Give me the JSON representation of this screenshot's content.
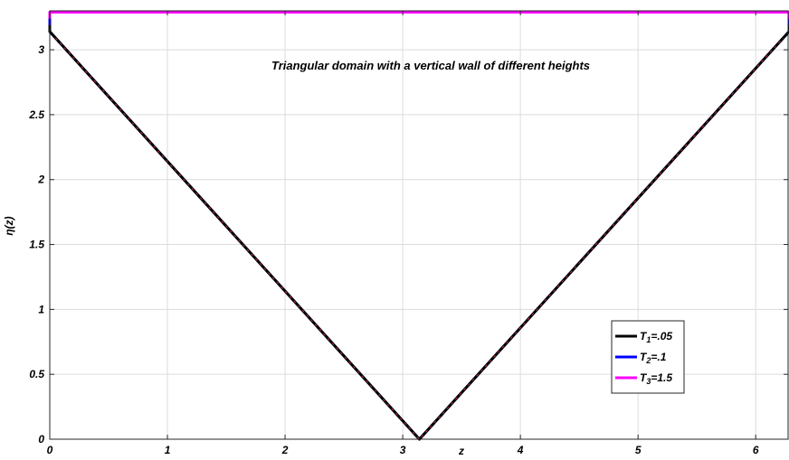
{
  "chart_data": {
    "type": "line",
    "title": "",
    "annotation": "Triangular domain with a vertical wall of different heights",
    "xlabel": "z",
    "ylabel": "η(z)",
    "xlim": [
      0,
      6.283
    ],
    "ylim": [
      0,
      3.3
    ],
    "xticks": [
      0,
      1,
      2,
      3,
      4,
      5,
      6
    ],
    "xtick_labels": [
      "0",
      "1",
      "2",
      "3",
      "4",
      "5",
      "6"
    ],
    "yticks": [
      0,
      0.5,
      1,
      1.5,
      2,
      2.5,
      3
    ],
    "ytick_labels": [
      "0",
      "0.5",
      "1",
      "1.5",
      "2",
      "2.5",
      "3"
    ],
    "grid": true,
    "legend_position": "lower-right",
    "series": [
      {
        "legend_main": "T",
        "legend_sub": "1",
        "legend_tail": "=.05",
        "color": "#000000",
        "x": [
          0,
          0,
          0.05,
          3.1416,
          6.2332,
          6.283,
          6.283
        ],
        "y": [
          3.19,
          3.14,
          3.09,
          0,
          3.09,
          3.14,
          3.19
        ],
        "wall_height": 3.19
      },
      {
        "legend_main": "T",
        "legend_sub": "2",
        "legend_tail": "=.1",
        "color": "#0000ff",
        "x": [
          0,
          0,
          0.05,
          3.1416,
          6.2332,
          6.283,
          6.283
        ],
        "y": [
          3.24,
          3.14,
          3.09,
          0,
          3.09,
          3.14,
          3.24
        ],
        "wall_height": 3.24
      },
      {
        "legend_main": "T",
        "legend_sub": "3",
        "legend_tail": "=1.5",
        "color": "#ff00ff",
        "x": [
          0,
          0,
          6.283,
          6.283
        ],
        "y": [
          3.14,
          3.29,
          3.29,
          3.14
        ],
        "wall_height": 3.29
      }
    ]
  }
}
